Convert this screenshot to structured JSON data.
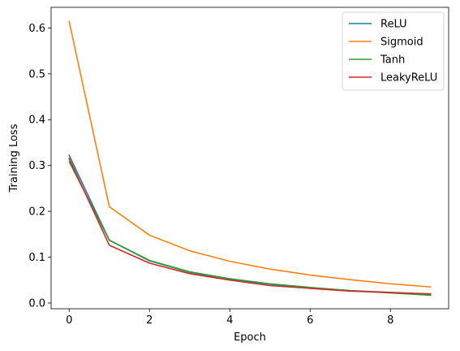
{
  "chart_data": {
    "type": "line",
    "title": "",
    "xlabel": "Epoch",
    "ylabel": "Training Loss",
    "xlim": [
      -0.45,
      9.45
    ],
    "ylim": [
      -0.0125,
      0.645
    ],
    "x": [
      0,
      1,
      2,
      3,
      4,
      5,
      6,
      7,
      8,
      9
    ],
    "x_ticks": [
      0,
      2,
      4,
      6,
      8
    ],
    "x_tick_labels": [
      "0",
      "2",
      "4",
      "6",
      "8"
    ],
    "y_ticks": [
      0.0,
      0.1,
      0.2,
      0.3,
      0.4,
      0.5,
      0.6
    ],
    "y_tick_labels": [
      "0.0",
      "0.1",
      "0.2",
      "0.3",
      "0.4",
      "0.5",
      "0.6"
    ],
    "grid": false,
    "legend_position": "top-right",
    "series": [
      {
        "name": "ReLU",
        "color": "#1f77b4",
        "values": [
          0.322,
          0.137,
          0.092,
          0.067,
          0.052,
          0.041,
          0.033,
          0.027,
          0.023,
          0.019
        ]
      },
      {
        "name": "Sigmoid",
        "color": "#ff7f0e",
        "values": [
          0.614,
          0.21,
          0.148,
          0.114,
          0.091,
          0.074,
          0.061,
          0.051,
          0.042,
          0.035
        ]
      },
      {
        "name": "Tanh",
        "color": "#2ca02c",
        "values": [
          0.308,
          0.137,
          0.093,
          0.068,
          0.053,
          0.042,
          0.034,
          0.027,
          0.022,
          0.017
        ]
      },
      {
        "name": "LeakyReLU",
        "color": "#d62728",
        "values": [
          0.315,
          0.126,
          0.087,
          0.064,
          0.05,
          0.038,
          0.032,
          0.026,
          0.023,
          0.02
        ]
      }
    ]
  }
}
